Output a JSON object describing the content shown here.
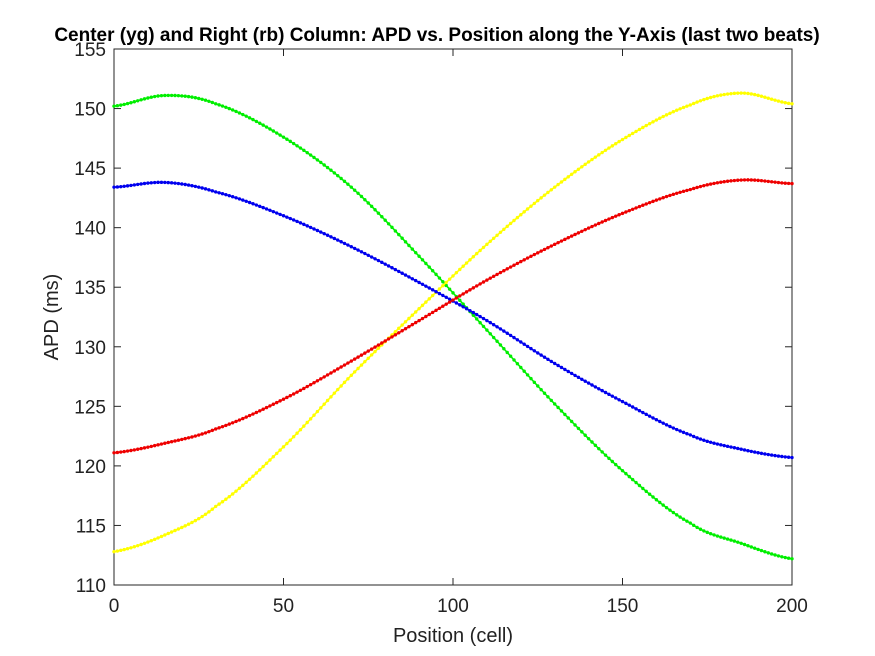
{
  "chart_data": {
    "type": "line",
    "title": "Center (yg) and Right (rb) Column: APD vs. Position along the Y-Axis (last two beats)",
    "xlabel": "Position (cell)",
    "ylabel": "APD (ms)",
    "xlim": [
      0,
      200
    ],
    "ylim": [
      110,
      155
    ],
    "xticks": [
      0,
      50,
      100,
      150,
      200
    ],
    "yticks": [
      110,
      115,
      120,
      125,
      130,
      135,
      140,
      145,
      150,
      155
    ],
    "grid": false,
    "legend": "none",
    "marker": "dot",
    "series": [
      {
        "color": "#00ee00",
        "x": [
          0,
          15,
          30,
          50,
          70,
          90,
          110,
          130,
          150,
          170,
          185,
          200
        ],
        "y": [
          150.2,
          151.1,
          150.4,
          147.6,
          143.4,
          137.6,
          131.4,
          125.2,
          119.6,
          115.2,
          113.5,
          112.2
        ]
      },
      {
        "color": "#ffff00",
        "x": [
          0,
          15,
          30,
          50,
          70,
          90,
          110,
          130,
          150,
          170,
          185,
          200
        ],
        "y": [
          112.8,
          114.2,
          116.6,
          121.6,
          127.6,
          133.2,
          138.6,
          143.4,
          147.4,
          150.3,
          151.3,
          150.4
        ]
      },
      {
        "color": "#0000ee",
        "x": [
          0,
          15,
          30,
          50,
          70,
          90,
          110,
          130,
          150,
          170,
          185,
          200
        ],
        "y": [
          143.4,
          143.8,
          143.0,
          141.0,
          138.4,
          135.4,
          132.2,
          128.6,
          125.4,
          122.6,
          121.4,
          120.7
        ]
      },
      {
        "color": "#ee0000",
        "x": [
          0,
          15,
          30,
          50,
          70,
          90,
          110,
          130,
          150,
          170,
          185,
          200
        ],
        "y": [
          121.1,
          121.9,
          123.1,
          125.6,
          128.8,
          132.2,
          135.6,
          138.6,
          141.2,
          143.2,
          144.0,
          143.7
        ]
      }
    ]
  }
}
